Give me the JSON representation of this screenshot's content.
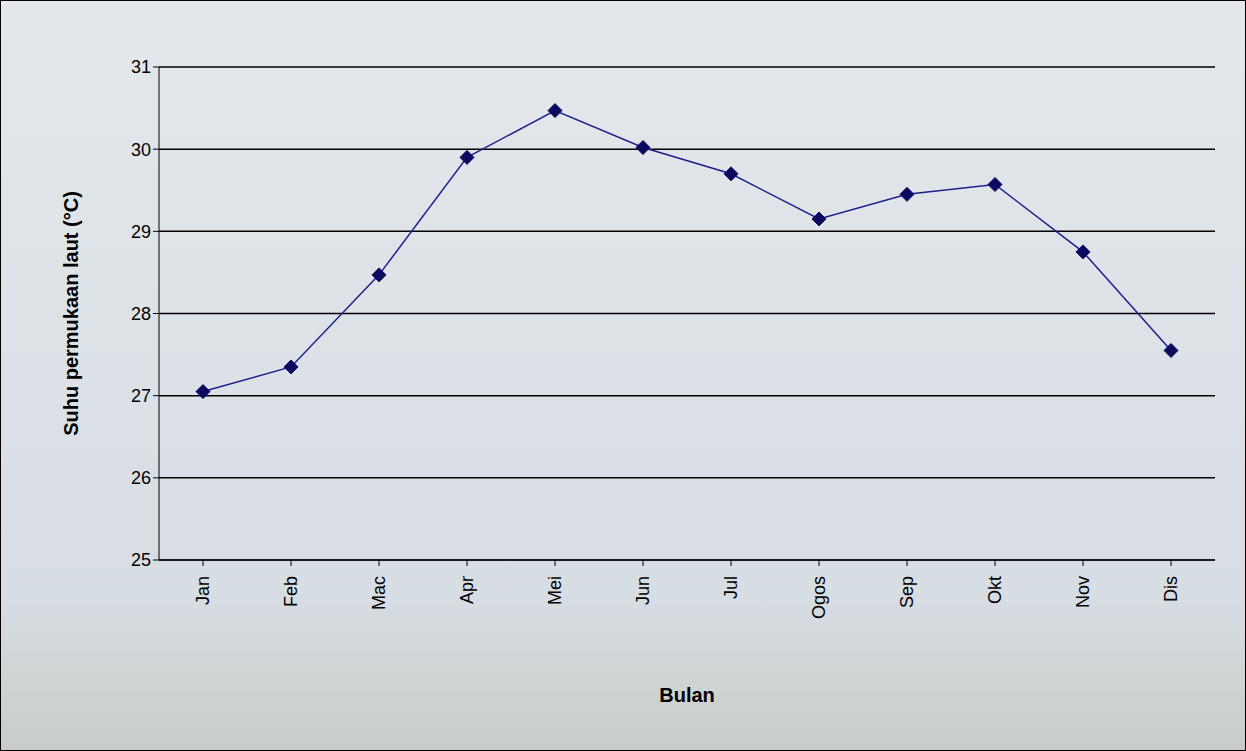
{
  "chart_data": {
    "type": "line",
    "x_label": "Bulan",
    "y_label": "Suhu permukaan laut (°C)",
    "categories": [
      "Jan",
      "Feb",
      "Mac",
      "Apr",
      "Mei",
      "Jun",
      "Jul",
      "Ogos",
      "Sep",
      "Okt",
      "Nov",
      "Dis"
    ],
    "values": [
      27.05,
      27.35,
      28.47,
      29.9,
      30.47,
      30.02,
      29.7,
      29.15,
      29.45,
      29.57,
      28.75,
      27.55
    ],
    "color": "#1f1f8c",
    "marker": "diamond",
    "ylim": [
      25,
      31
    ],
    "yticks": [
      25,
      26,
      27,
      28,
      29,
      30,
      31
    ],
    "grid": true
  }
}
